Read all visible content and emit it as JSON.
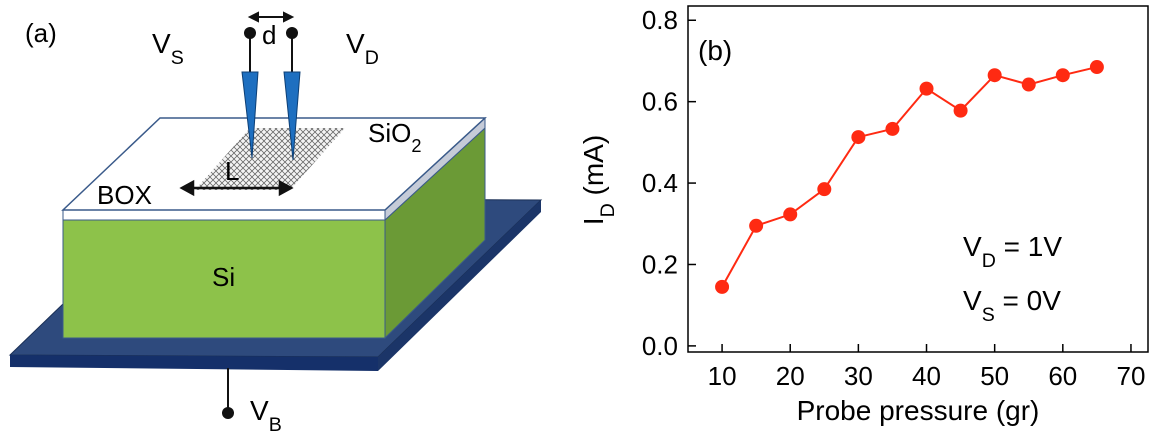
{
  "diagram": {
    "panel_label": "(a)",
    "source": {
      "main": "V",
      "sub": "S"
    },
    "drain": {
      "main": "V",
      "sub": "D"
    },
    "spacing": "d",
    "oxide": {
      "main": "SiO",
      "sub": "2"
    },
    "length": "L",
    "box": "BOX",
    "substrate": "Si",
    "back_gate": {
      "main": "V",
      "sub": "B"
    }
  },
  "chart_data": {
    "type": "line",
    "panel_label": "(b)",
    "x_label": "Probe pressure (gr)",
    "y_label": {
      "main": "I",
      "sub": "D",
      "rest": " (mA)"
    },
    "annotations": [
      {
        "main": "V",
        "sub": "D",
        "rest": " = 1V"
      },
      {
        "main": "V",
        "sub": "S",
        "rest": " = 0V"
      }
    ],
    "x": [
      10,
      15,
      20,
      25,
      30,
      35,
      40,
      45,
      50,
      55,
      60,
      65
    ],
    "values": [
      0.145,
      0.295,
      0.323,
      0.385,
      0.513,
      0.533,
      0.632,
      0.578,
      0.665,
      0.642,
      0.665,
      0.685
    ],
    "color": "#ff2a12",
    "xlim": [
      5,
      72.5
    ],
    "ylim": [
      -0.015,
      0.835
    ],
    "xticks": [
      10,
      20,
      30,
      40,
      50,
      60,
      70
    ],
    "yticks": [
      {
        "value": 0,
        "label": "0.0"
      },
      0.2,
      0.4,
      0.6,
      0.8
    ],
    "grid": false
  }
}
